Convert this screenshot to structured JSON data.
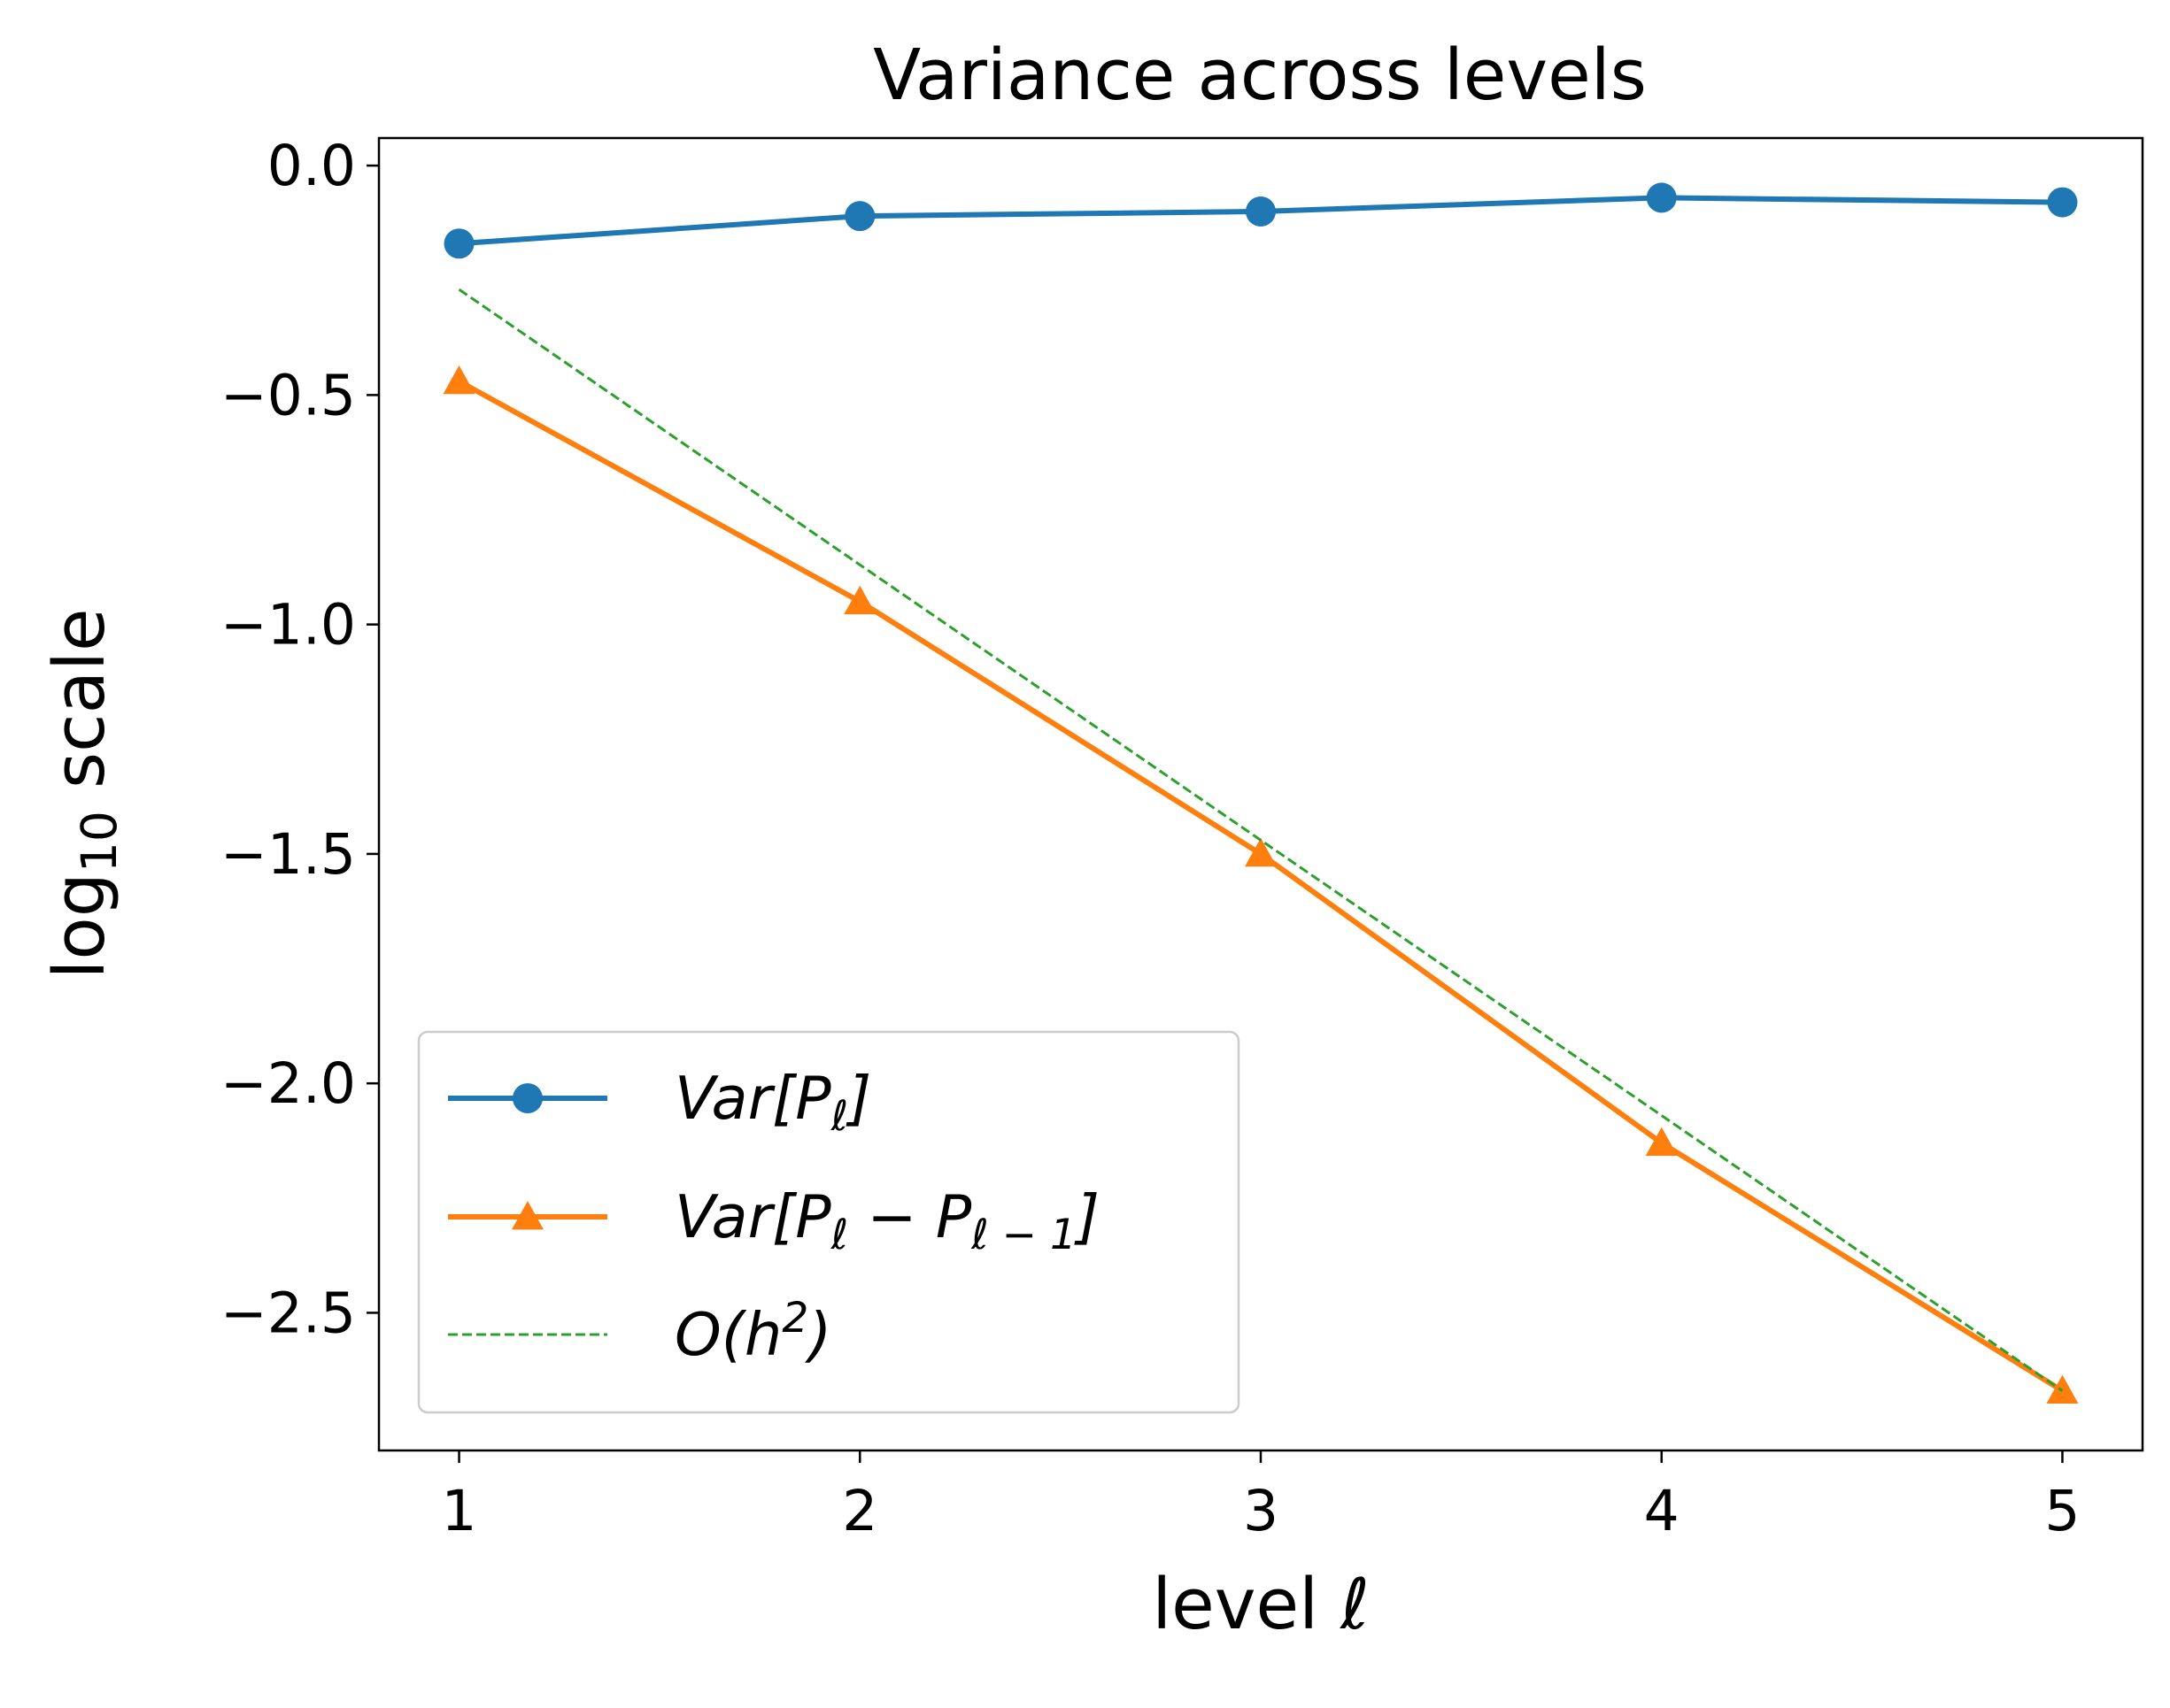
{
  "chart_data": {
    "type": "line",
    "title": "Variance across levels",
    "xlabel": "level ℓ",
    "ylabel": "log10 scale",
    "ylabel_parts": {
      "base": "log",
      "sub": "10",
      "rest": " scale"
    },
    "x": [
      1,
      2,
      3,
      4,
      5
    ],
    "xlim": [
      0.8,
      5.2
    ],
    "ylim": [
      -2.8,
      0.06
    ],
    "xticks": [
      1,
      2,
      3,
      4,
      5
    ],
    "xtick_labels": [
      "1",
      "2",
      "3",
      "4",
      "5"
    ],
    "yticks": [
      0.0,
      -0.5,
      -1.0,
      -1.5,
      -2.0,
      -2.5
    ],
    "ytick_labels": [
      "0.0",
      "−0.5",
      "−1.0",
      "−1.5",
      "−2.0",
      "−2.5"
    ],
    "grid": false,
    "legend_position": "lower-left",
    "series": [
      {
        "name": "Var[Pℓ]",
        "legend": {
          "pre": "Var[P",
          "sub": "ℓ",
          "post": "]"
        },
        "values": [
          -0.17,
          -0.11,
          -0.1,
          -0.07,
          -0.08
        ],
        "color": "#1f77b4",
        "marker": "circle",
        "style": "solid"
      },
      {
        "name": "Var[Pℓ − Pℓ−1]",
        "legend": {
          "pre": "Var[P",
          "sub": "ℓ",
          "mid": " − P",
          "sub2": "ℓ − 1",
          "post": "]"
        },
        "values": [
          -0.47,
          -0.95,
          -1.5,
          -2.13,
          -2.67
        ],
        "color": "#ff7f0e",
        "marker": "triangle",
        "style": "solid"
      },
      {
        "name": "O(h²)",
        "legend": {
          "pre": "O(h",
          "sup": "2",
          "post": ")"
        },
        "values": [
          -0.27,
          -0.87,
          -1.47,
          -2.07,
          -2.67
        ],
        "color": "#2ca02c",
        "marker": "none",
        "style": "dashed"
      }
    ]
  }
}
